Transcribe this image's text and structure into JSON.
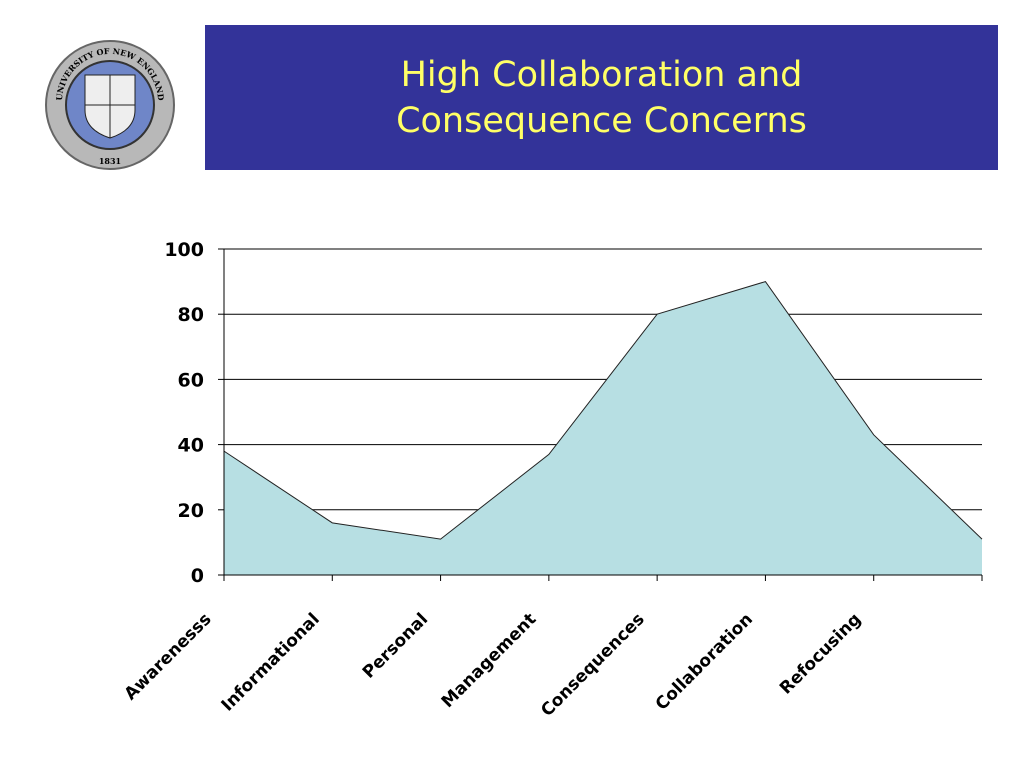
{
  "logo": {
    "name": "UNIVERSITY OF NEW ENGLAND",
    "year": "1831"
  },
  "chart_data": {
    "type": "area",
    "title": "High Collaboration and Consequence Concerns",
    "categories": [
      "Awarenesss",
      "Informational",
      "Personal",
      "Management",
      "Consequences",
      "Collaboration",
      "Refocusing",
      null
    ],
    "values": [
      38,
      16,
      11,
      37,
      80,
      90,
      43,
      11
    ],
    "color": "#b7dfe3",
    "ylim": [
      0,
      100
    ],
    "yticks": [
      0,
      20,
      40,
      60,
      80,
      100
    ],
    "grid": true
  }
}
